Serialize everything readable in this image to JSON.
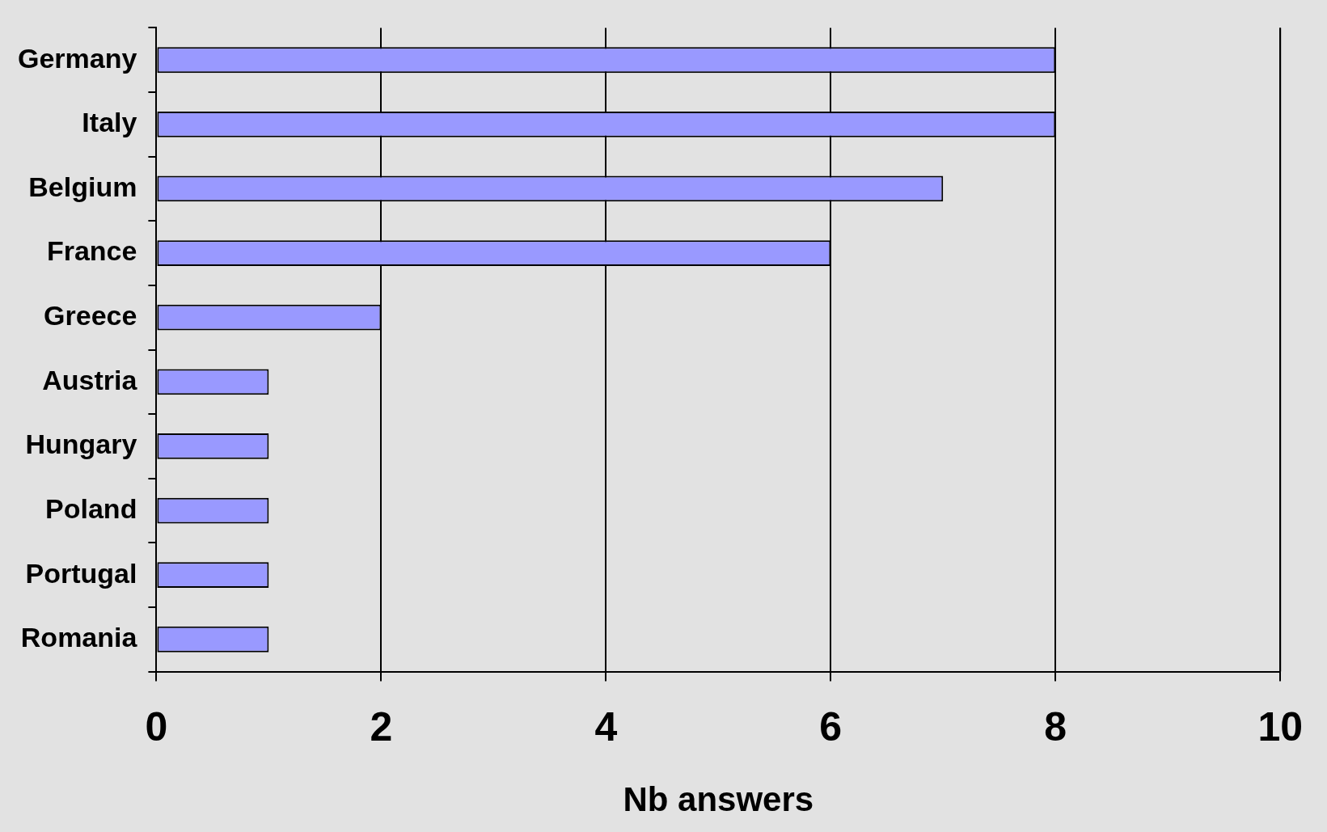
{
  "chart_data": {
    "type": "bar",
    "orientation": "horizontal",
    "xlabel": "Nb answers",
    "categories": [
      "Germany",
      "Italy",
      "Belgium",
      "France",
      "Greece",
      "Austria",
      "Hungary",
      "Poland",
      "Portugal",
      "Romania"
    ],
    "values": [
      8,
      8,
      7,
      6,
      2,
      1,
      1,
      1,
      1,
      1
    ],
    "color": "#9999ff",
    "xlim": [
      0,
      10
    ],
    "xticks": [
      0,
      2,
      4,
      6,
      8,
      10
    ],
    "grid": "x",
    "legend": false
  }
}
